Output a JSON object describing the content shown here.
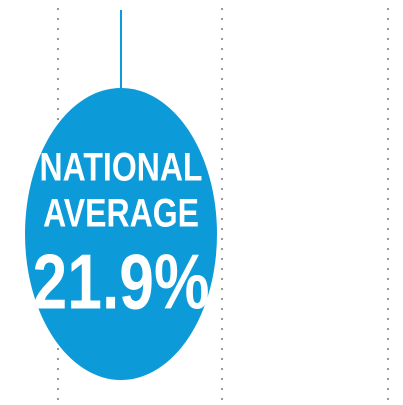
{
  "badge": {
    "line1": "NATIONAL",
    "line2": "AVERAGE",
    "value": "21.9%"
  }
}
